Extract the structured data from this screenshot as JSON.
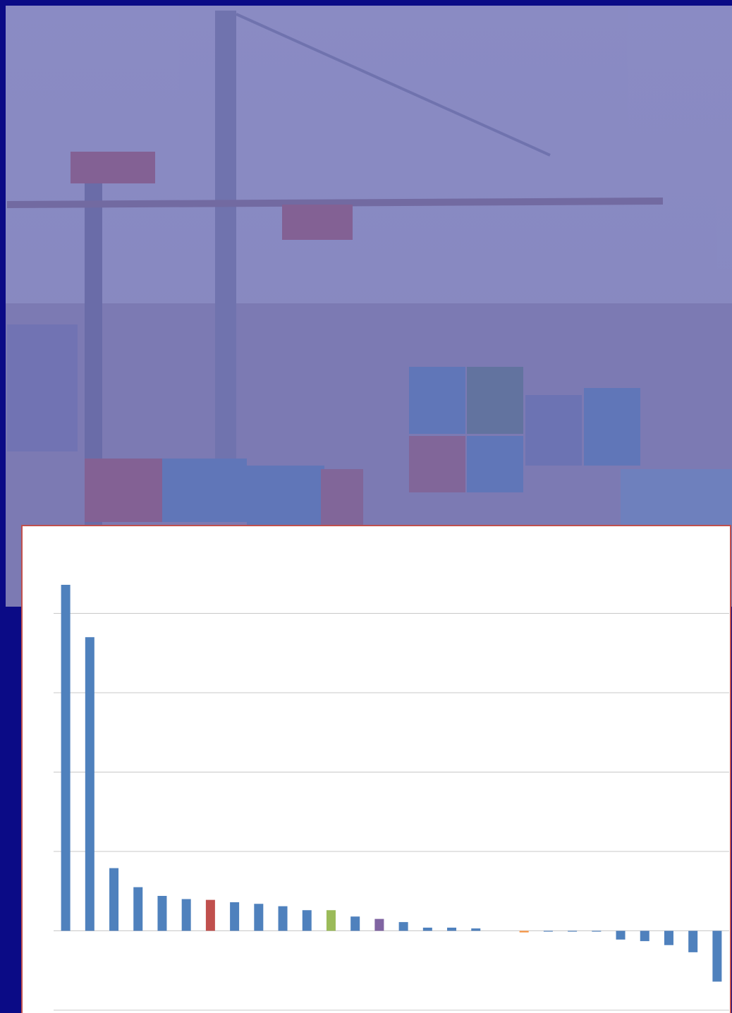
{
  "chart_data": {
    "type": "bar",
    "categories": [
      null,
      null,
      null,
      null,
      null,
      null,
      null,
      null,
      null,
      null,
      null,
      null,
      null,
      null,
      null,
      null,
      null,
      null,
      null,
      null,
      null,
      null,
      null,
      null,
      null,
      null,
      null,
      null
    ],
    "values": [
      4.36,
      3.7,
      0.79,
      0.55,
      0.44,
      0.4,
      0.39,
      0.36,
      0.34,
      0.31,
      0.26,
      0.26,
      0.18,
      0.15,
      0.11,
      0.04,
      0.04,
      0.03,
      0,
      -0.02,
      -0.01,
      -0.01,
      -0.01,
      -0.11,
      -0.13,
      -0.18,
      -0.27,
      -0.64
    ],
    "colors": [
      "#4f81bd",
      "#4f81bd",
      "#4f81bd",
      "#4f81bd",
      "#4f81bd",
      "#4f81bd",
      "#c0504d",
      "#4f81bd",
      "#4f81bd",
      "#4f81bd",
      "#4f81bd",
      "#9bbb59",
      "#4f81bd",
      "#8064a2",
      "#4f81bd",
      "#4f81bd",
      "#4f81bd",
      "#4f81bd",
      "#4f81bd",
      "#f79646",
      "#4f81bd",
      "#4f81bd",
      "#4f81bd",
      "#4f81bd",
      "#4f81bd",
      "#4f81bd",
      "#4f81bd",
      "#4f81bd"
    ],
    "ylim": [
      -1,
      5
    ],
    "yticks": [
      -1,
      0,
      1,
      2,
      3,
      4
    ],
    "grid": true,
    "tick_labels": false
  }
}
